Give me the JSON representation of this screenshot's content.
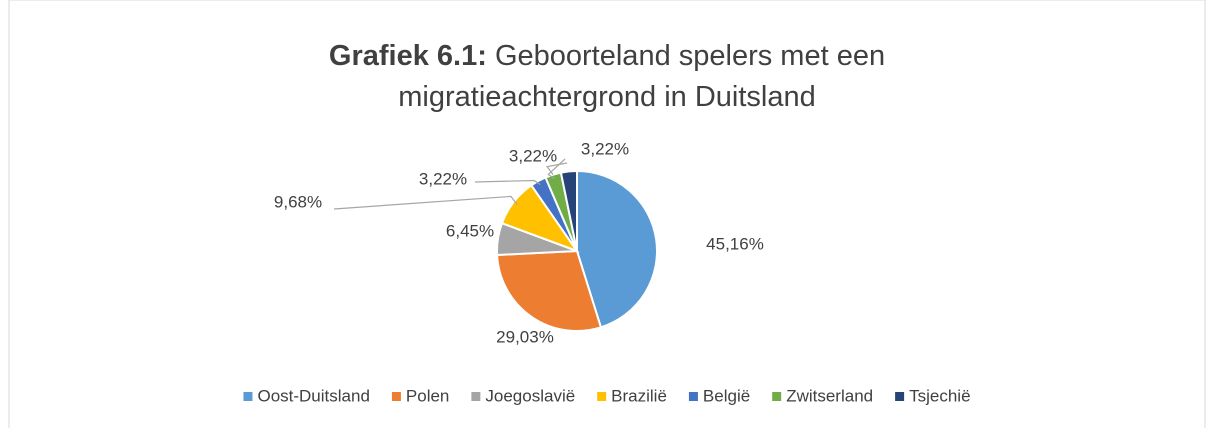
{
  "chart_data": {
    "type": "pie",
    "title_prefix": "Grafiek 6.1:",
    "title": "Geboorteland spelers met een migratieachtergrond in Duitsland",
    "categories": [
      "Oost-Duitsland",
      "Polen",
      "Joegoslavië",
      "Brazilië",
      "België",
      "Zwitserland",
      "Tsjechië"
    ],
    "values": [
      45.16,
      29.03,
      6.45,
      9.68,
      3.22,
      3.22,
      3.22
    ],
    "value_labels": [
      "45,16%",
      "29,03%",
      "6,45%",
      "9,68%",
      "3,22%",
      "3,22%",
      "3,22%"
    ],
    "colors": [
      "#5b9bd5",
      "#ed7d31",
      "#a5a5a5",
      "#ffc000",
      "#4472c4",
      "#70ad47",
      "#264478"
    ],
    "legend": "bottom"
  }
}
